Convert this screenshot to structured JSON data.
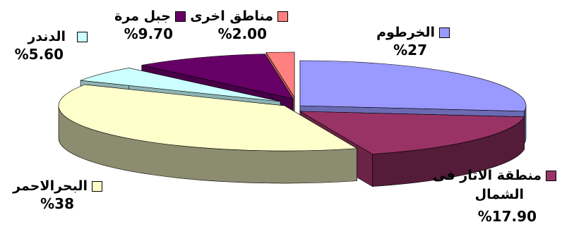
{
  "chart_data": {
    "type": "pie",
    "title": "",
    "style": "3d-exploded",
    "slices": [
      {
        "label": "الخرطوم",
        "value_label": "%27",
        "value": 27,
        "color": "#9999ff"
      },
      {
        "label": "منطقة الاثار فى الشمال",
        "value_label": "%17.90",
        "value": 17.9,
        "color": "#993366"
      },
      {
        "label": "البحرالاحمر",
        "value_label": "%38",
        "value": 38,
        "color": "#ffffcc"
      },
      {
        "label": "الدندر",
        "value_label": "%5.60",
        "value": 5.6,
        "color": "#ccffff"
      },
      {
        "label": "جبل مرة",
        "value_label": "%9.70",
        "value": 9.7,
        "color": "#660066"
      },
      {
        "label": "مناطق اخرى",
        "value_label": "%2.00",
        "value": 2.0,
        "color": "#ff8080"
      }
    ]
  }
}
